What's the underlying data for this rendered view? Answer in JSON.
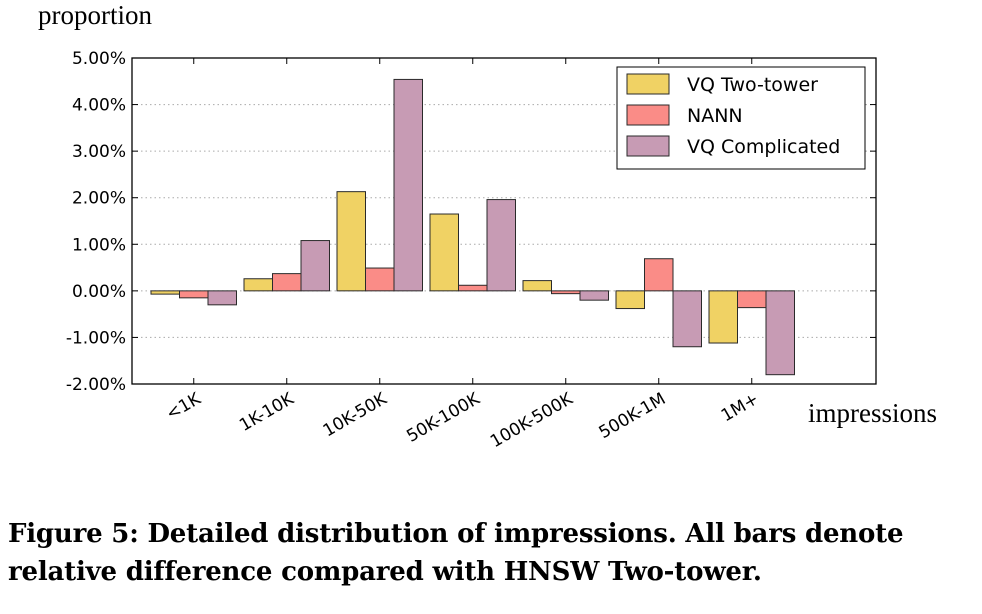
{
  "chart_data": {
    "type": "bar",
    "ylabel": "proportion",
    "xlabel": "impressions",
    "categories": [
      "<1K",
      "1K-10K",
      "10K-50K",
      "50K-100K",
      "100K-500K",
      "500K-1M",
      "1M+"
    ],
    "ylim": [
      -2.0,
      5.0
    ],
    "yticks": [
      "5.00%",
      "4.00%",
      "3.00%",
      "2.00%",
      "1.00%",
      "0.00%",
      "-1.00%",
      "-2.00%"
    ],
    "unit": "%",
    "grid": "horizontal dotted",
    "legend_position": "top-right",
    "series": [
      {
        "name": "VQ Two-tower",
        "color": "#f0d264",
        "values": [
          -0.07,
          0.26,
          2.13,
          1.65,
          0.22,
          -0.38,
          -1.12
        ]
      },
      {
        "name": "NANN",
        "color": "#fa8c87",
        "values": [
          -0.15,
          0.37,
          0.49,
          0.12,
          -0.06,
          0.69,
          -0.36
        ]
      },
      {
        "name": "VQ Complicated",
        "color": "#c79bb4",
        "values": [
          -0.3,
          1.08,
          4.54,
          1.96,
          -0.2,
          -1.2,
          -1.8
        ]
      }
    ]
  },
  "caption": "Figure 5: Detailed distribution of impressions. All bars denote relative difference compared with HNSW Two-tower."
}
